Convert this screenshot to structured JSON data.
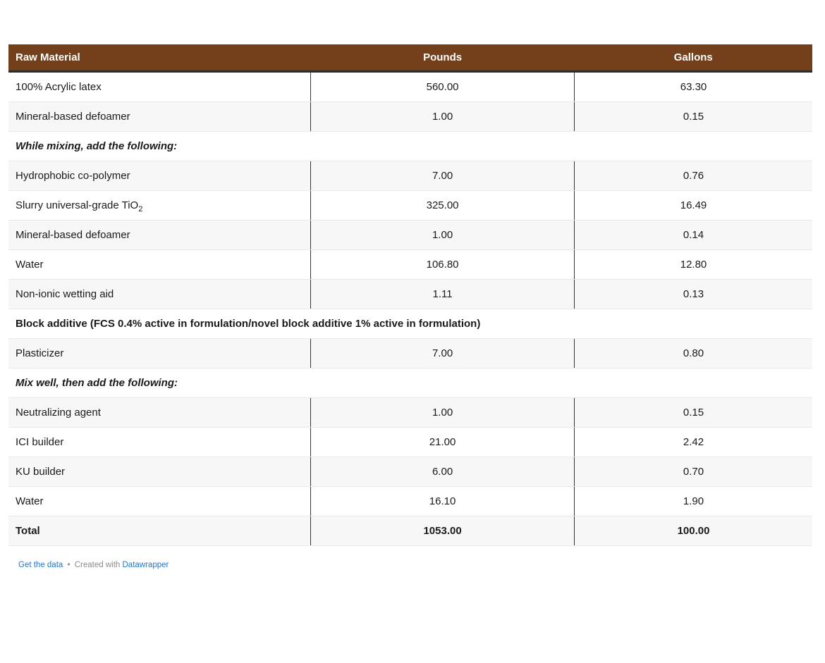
{
  "theme": {
    "header_bg": "#74401B",
    "header_text": "#ffffff",
    "header_border": "#2B2B2B",
    "body_text": "#1A1A1A",
    "row_alt_bg": "#F7F7F7",
    "row_line": "#E9E9E9",
    "divider": "#333333",
    "link_color": "#1E77CC",
    "footer_text": "#8A8A8A"
  },
  "chart_data": {
    "type": "table",
    "title": "",
    "columns": [
      "Raw Material",
      "Pounds",
      "Gallons"
    ],
    "column_widths_pct": [
      37.6,
      32.8,
      29.6
    ],
    "rows": [
      {
        "row_type": "data",
        "material": "100% Acrylic latex",
        "pounds": 560,
        "gallons": 63.3
      },
      {
        "row_type": "data",
        "material": "Mineral-based defoamer",
        "pounds": 1,
        "gallons": 0.15
      },
      {
        "row_type": "section",
        "label": "While mixing, add the following:",
        "italic": true
      },
      {
        "row_type": "data",
        "material": "Hydrophobic co-polymer",
        "pounds": 7,
        "gallons": 0.76
      },
      {
        "row_type": "data",
        "material": "Slurry universal-grade TiO",
        "material_sub": "2",
        "pounds": 325,
        "gallons": 16.49
      },
      {
        "row_type": "data",
        "material": "Mineral-based defoamer",
        "pounds": 1,
        "gallons": 0.14
      },
      {
        "row_type": "data",
        "material": "Water",
        "pounds": 106.8,
        "gallons": 12.8
      },
      {
        "row_type": "data",
        "material": "Non-ionic wetting aid",
        "pounds": 1.11,
        "gallons": 0.13
      },
      {
        "row_type": "section",
        "label": "Block additive (FCS 0.4% active in formulation/novel block additive 1% active in formulation)",
        "italic": false
      },
      {
        "row_type": "data",
        "material": "Plasticizer",
        "pounds": 7,
        "gallons": 0.8
      },
      {
        "row_type": "section",
        "label": "Mix well, then add the following:",
        "italic": true
      },
      {
        "row_type": "data",
        "material": "Neutralizing agent",
        "pounds": 1,
        "gallons": 0.15
      },
      {
        "row_type": "data",
        "material": "ICI builder",
        "pounds": 21,
        "gallons": 2.42
      },
      {
        "row_type": "data",
        "material": "KU builder",
        "pounds": 6,
        "gallons": 0.7
      },
      {
        "row_type": "data",
        "material": "Water",
        "pounds": 16.1,
        "gallons": 1.9
      },
      {
        "row_type": "data",
        "material": "Total",
        "pounds": 1053,
        "gallons": 100,
        "is_total": true
      }
    ],
    "number_format": "2-decimals"
  },
  "footer": {
    "get_data_label": "Get the data",
    "separator": "•",
    "created_with": "Created with",
    "brand": "Datawrapper"
  }
}
